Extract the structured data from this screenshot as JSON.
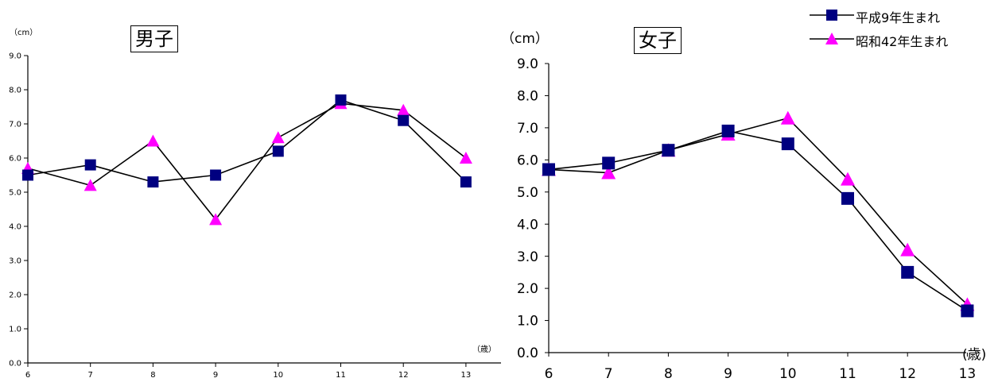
{
  "legend": {
    "series1": "平成9年生まれ",
    "series2": "昭和42年生まれ"
  },
  "colors": {
    "series1": "#000080",
    "series2": "#FF00FF",
    "line": "#000000"
  },
  "chart_data": [
    {
      "type": "line",
      "title": "男子",
      "unit_y": "（cm）",
      "unit_x": "（歳）",
      "x": [
        6,
        7,
        8,
        9,
        10,
        11,
        12,
        13
      ],
      "y_ticks": [
        "0.0",
        "1.0",
        "2.0",
        "3.0",
        "4.0",
        "5.0",
        "6.0",
        "7.0",
        "8.0",
        "9.0"
      ],
      "ylim": [
        0,
        9
      ],
      "grid": false,
      "series": [
        {
          "name": "平成9年生まれ",
          "marker": "square",
          "values": [
            5.5,
            5.8,
            5.3,
            5.5,
            6.2,
            7.7,
            7.1,
            5.3
          ]
        },
        {
          "name": "昭和42年生まれ",
          "marker": "triangle",
          "values": [
            5.7,
            5.2,
            6.5,
            4.2,
            6.6,
            7.6,
            7.4,
            6.0
          ]
        }
      ]
    },
    {
      "type": "line",
      "title": "女子",
      "unit_y": "（cm）",
      "unit_x": "(歳)",
      "x": [
        6,
        7,
        8,
        9,
        10,
        11,
        12,
        13
      ],
      "y_ticks": [
        "0.0",
        "1.0",
        "2.0",
        "3.0",
        "4.0",
        "5.0",
        "6.0",
        "7.0",
        "8.0",
        "9.0"
      ],
      "ylim": [
        0,
        9
      ],
      "grid": false,
      "series": [
        {
          "name": "平成9年生まれ",
          "marker": "square",
          "values": [
            5.7,
            5.9,
            6.3,
            6.9,
            6.5,
            4.8,
            2.5,
            1.3
          ]
        },
        {
          "name": "昭和42年生まれ",
          "marker": "triangle",
          "values": [
            5.7,
            5.6,
            6.3,
            6.8,
            7.3,
            5.4,
            3.2,
            1.5
          ]
        }
      ]
    }
  ]
}
